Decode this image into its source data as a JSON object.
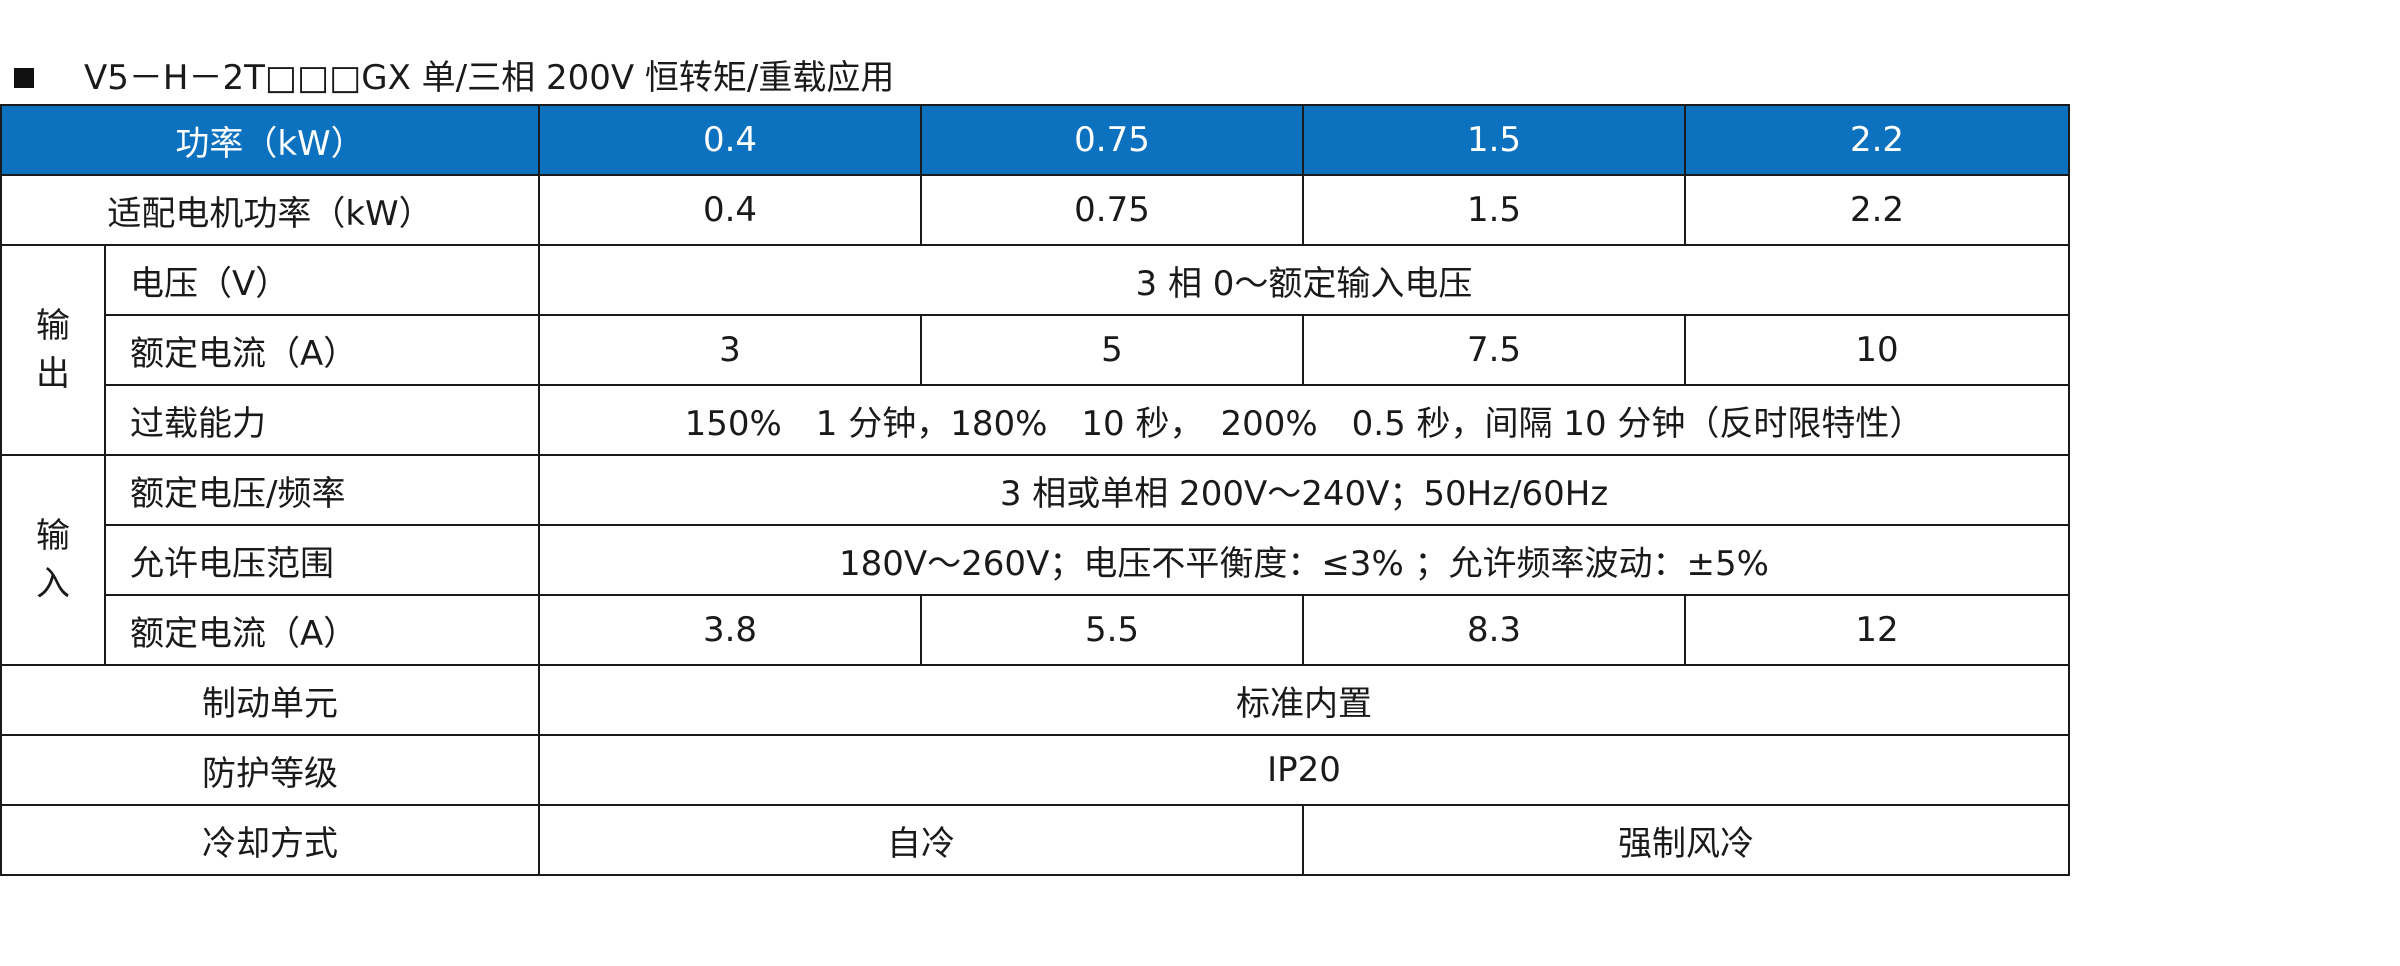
{
  "title": "V5－H－2T□□□GX 单/三相 200V 恒转矩/重载应用",
  "table": {
    "header": {
      "label": "功率（kW）",
      "values": [
        "0.4",
        "0.75",
        "1.5",
        "2.2"
      ]
    },
    "motor_power": {
      "label": "适配电机功率（kW）",
      "values": [
        "0.4",
        "0.75",
        "1.5",
        "2.2"
      ]
    },
    "output": {
      "group_label_1": "输",
      "group_label_2": "出",
      "voltage": {
        "label": "电压（V）",
        "value": "3 相 0～额定输入电压"
      },
      "rated_current": {
        "label": "额定电流（A）",
        "values": [
          "3",
          "5",
          "7.5",
          "10"
        ]
      },
      "overload": {
        "label": "过载能力",
        "value": "150%　1 分钟，180%　10 秒，　200%　0.5 秒，间隔  10 分钟（反时限特性）"
      }
    },
    "input": {
      "group_label_1": "输",
      "group_label_2": "入",
      "rated_voltage_freq": {
        "label": "额定电压/频率",
        "value": "3 相或单相  200V～240V；50Hz/60Hz"
      },
      "allowed_voltage": {
        "label": "允许电压范围",
        "value": "180V～260V；电压不平衡度：≤3% ；允许频率波动：±5%"
      },
      "rated_current": {
        "label": "额定电流（A）",
        "values": [
          "3.8",
          "5.5",
          "8.3",
          "12"
        ]
      }
    },
    "braking_unit": {
      "label": "制动单元",
      "value": "标准内置"
    },
    "protection_class": {
      "label": "防护等级",
      "value": "IP20"
    },
    "cooling": {
      "label": "冷却方式",
      "values": [
        "自冷",
        "强制风冷"
      ]
    }
  },
  "colors": {
    "header_bg": "#0c72bf",
    "header_text": "#ffffff",
    "border": "#1a1a1a"
  }
}
